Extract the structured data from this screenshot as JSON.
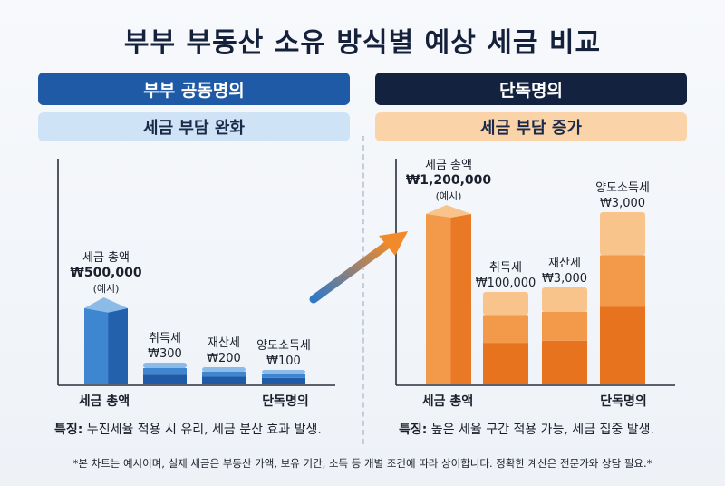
{
  "title": "부부 부동산 소유 방식별 예상 세금 비교",
  "left_panel": {
    "header": "부부 공동명의",
    "subheader": "세금 부담 완화",
    "feature_label": "특징:",
    "feature_text": " 누진세율 적용 시 유리, 세금 분산 효과 발생.",
    "x_start_label": "세금 총액",
    "x_end_label": "단독명의"
  },
  "right_panel": {
    "header": "단독명의",
    "subheader": "세금 부담 증가",
    "feature_label": "특징:",
    "feature_text": " 높은 세율 구간 적용 가능, 세금 집중 발생.",
    "x_start_label": "세금 총액",
    "x_end_label": "단독명의"
  },
  "footnote": "*본 차트는 예시이며, 실제 세금은 부동산 가액, 보유 기간, 소득 등 개별 조건에 따라 상이합니다. 정확한 계산은 전문가와 상담 필요.*",
  "colors": {
    "left_dark": "#1f5aa6",
    "left_mid": "#3f86d1",
    "left_light": "#8cbbe8",
    "right_dark": "#e8731e",
    "right_mid": "#f29a4a",
    "right_light": "#f8c48c"
  },
  "chart_data": [
    {
      "type": "bar",
      "panel": "부부 공동명의",
      "categories": [
        "세금 총액",
        "취득세",
        "재산세",
        "양도소득세"
      ],
      "values": [
        500000,
        300,
        200,
        100
      ],
      "data_labels": [
        [
          "세금 총액",
          "₩500,000",
          "(예시)"
        ],
        [
          "취득세",
          "₩300"
        ],
        [
          "재산세",
          "₩200"
        ],
        [
          "양도소득세",
          "₩100"
        ]
      ],
      "x_labels": [
        "세금 총액",
        "단독명의"
      ]
    },
    {
      "type": "bar",
      "panel": "단독명의",
      "categories": [
        "세금 총액",
        "취득세",
        "재산세",
        "양도소득세"
      ],
      "values": [
        1200000,
        100000,
        3000,
        3000
      ],
      "data_labels": [
        [
          "세금 총액",
          "₩1,200,000",
          "(예시)"
        ],
        [
          "취득세",
          "₩100,000"
        ],
        [
          "재산세",
          "₩3,000"
        ],
        [
          "양도소득세",
          "₩3,000"
        ]
      ],
      "x_labels": [
        "세금 총액",
        "단독명의"
      ]
    }
  ]
}
